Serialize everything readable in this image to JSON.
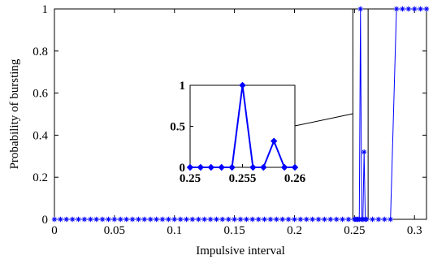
{
  "chart_data": [
    {
      "type": "line",
      "xlabel": "Impulsive interval",
      "ylabel": "Probability of bursting",
      "xlim": [
        0,
        0.31
      ],
      "ylim": [
        0,
        1
      ],
      "xticks": [
        0,
        0.05,
        0.1,
        0.15,
        0.2,
        0.25,
        0.3
      ],
      "xtick_labels": [
        "0",
        "0.05",
        "0.1",
        "0.15",
        "0.2",
        "0.25",
        "0.3"
      ],
      "yticks": [
        0,
        0.2,
        0.4,
        0.6,
        0.8,
        1
      ],
      "ytick_labels": [
        "0",
        "0.2",
        "0.4",
        "0.6",
        "0.8",
        "1"
      ],
      "grid": false,
      "legend": "none",
      "marker": "star",
      "line_color": "#0000ff",
      "series": [
        {
          "x": [
            0,
            0.005,
            0.01,
            0.015,
            0.02,
            0.025,
            0.03,
            0.035,
            0.04,
            0.045,
            0.05,
            0.055,
            0.06,
            0.065,
            0.07,
            0.075,
            0.08,
            0.085,
            0.09,
            0.095,
            0.1,
            0.105,
            0.11,
            0.115,
            0.12,
            0.125,
            0.13,
            0.135,
            0.14,
            0.145,
            0.15,
            0.155,
            0.16,
            0.165,
            0.17,
            0.175,
            0.18,
            0.185,
            0.19,
            0.195,
            0.2,
            0.205,
            0.21,
            0.215,
            0.22,
            0.225,
            0.23,
            0.235,
            0.24,
            0.245,
            0.25,
            0.251,
            0.252,
            0.253,
            0.254,
            0.255,
            0.256,
            0.257,
            0.258,
            0.259,
            0.26,
            0.265,
            0.27,
            0.275,
            0.28,
            0.285,
            0.29,
            0.295,
            0.3,
            0.305,
            0.31
          ],
          "y": [
            0,
            0,
            0,
            0,
            0,
            0,
            0,
            0,
            0,
            0,
            0,
            0,
            0,
            0,
            0,
            0,
            0,
            0,
            0,
            0,
            0,
            0,
            0,
            0,
            0,
            0,
            0,
            0,
            0,
            0,
            0,
            0,
            0,
            0,
            0,
            0,
            0,
            0,
            0,
            0,
            0,
            0,
            0,
            0,
            0,
            0,
            0,
            0,
            0,
            0,
            0,
            0,
            0,
            0,
            0,
            1,
            0,
            0,
            0.32,
            0,
            0,
            0,
            0,
            0,
            0,
            1,
            1,
            1,
            1,
            1,
            1
          ]
        }
      ],
      "zoom_box": {
        "x": [
          0.25,
          0.26
        ],
        "y": [
          0,
          1
        ]
      }
    },
    {
      "type": "line",
      "role": "inset",
      "xlim": [
        0.25,
        0.26
      ],
      "ylim": [
        0,
        1
      ],
      "xticks": [
        0.25,
        0.255,
        0.26
      ],
      "xtick_labels": [
        "0.25",
        "0.255",
        "0.26"
      ],
      "yticks": [
        0,
        0.5,
        1
      ],
      "ytick_labels": [
        "0",
        "0.5",
        "1"
      ],
      "marker": "diamond",
      "line_color": "#0000ff",
      "series": [
        {
          "x": [
            0.25,
            0.251,
            0.252,
            0.253,
            0.254,
            0.255,
            0.256,
            0.257,
            0.258,
            0.259,
            0.26
          ],
          "y": [
            0,
            0,
            0,
            0,
            0,
            1,
            0,
            0,
            0.32,
            0,
            0
          ]
        }
      ]
    }
  ]
}
